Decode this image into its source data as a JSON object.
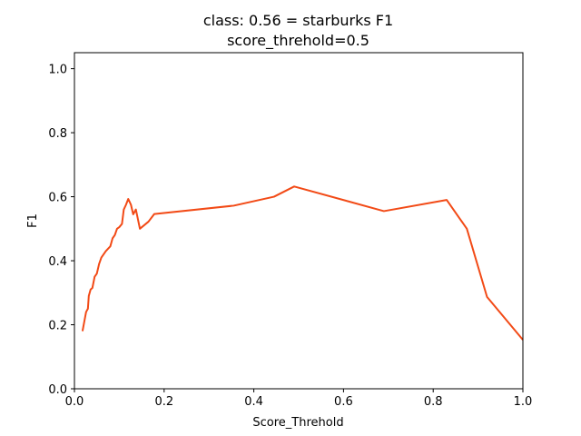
{
  "chart_data": {
    "type": "line",
    "title": "class: 0.56 = starburks F1",
    "subtitle": "score_threhold=0.5",
    "xlabel": "Score_Threhold",
    "ylabel": "F1",
    "xlim": [
      0.0,
      1.0
    ],
    "ylim": [
      0.0,
      1.05
    ],
    "xticks": [
      "0.0",
      "0.2",
      "0.4",
      "0.6",
      "0.8",
      "1.0"
    ],
    "yticks": [
      "0.0",
      "0.2",
      "0.4",
      "0.6",
      "0.8",
      "1.0"
    ],
    "grid": false,
    "series": [
      {
        "color": "#f24a16",
        "x": [
          0.018,
          0.022,
          0.026,
          0.03,
          0.032,
          0.036,
          0.04,
          0.045,
          0.05,
          0.055,
          0.06,
          0.07,
          0.08,
          0.085,
          0.09,
          0.095,
          0.1,
          0.106,
          0.11,
          0.115,
          0.12,
          0.126,
          0.131,
          0.137,
          0.14,
          0.146,
          0.165,
          0.178,
          0.355,
          0.445,
          0.49,
          0.69,
          0.83,
          0.875,
          0.92,
          1.0
        ],
        "y": [
          0.18,
          0.21,
          0.24,
          0.25,
          0.29,
          0.31,
          0.315,
          0.35,
          0.36,
          0.39,
          0.41,
          0.43,
          0.445,
          0.47,
          0.48,
          0.5,
          0.505,
          0.515,
          0.56,
          0.575,
          0.593,
          0.575,
          0.545,
          0.56,
          0.54,
          0.5,
          0.522,
          0.546,
          0.572,
          0.6,
          0.632,
          0.555,
          0.59,
          0.5,
          0.287,
          0.153
        ]
      }
    ]
  }
}
